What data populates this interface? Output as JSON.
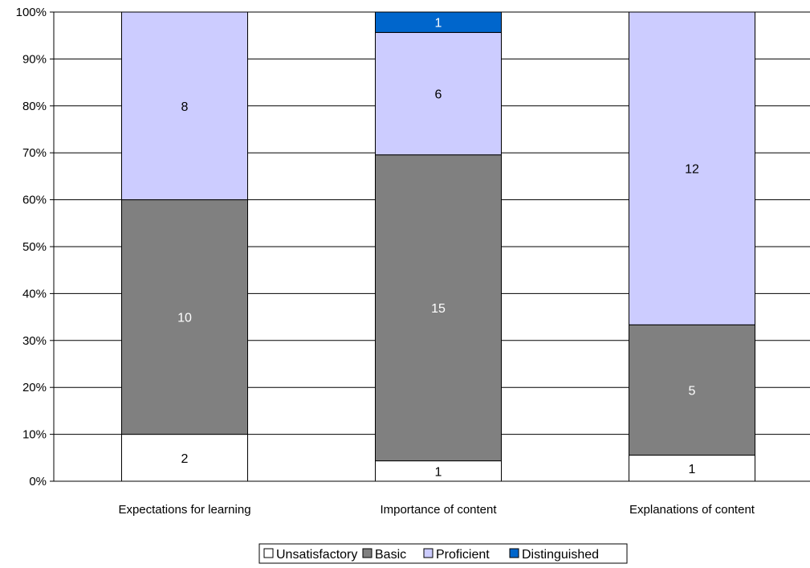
{
  "chart_data": {
    "type": "bar",
    "stacked": true,
    "normalized_100_percent": true,
    "categories": [
      "Expectations for learning",
      "Importance of content",
      "Explanations of content"
    ],
    "series": [
      {
        "name": "Unsatisfactory",
        "values": [
          2,
          1,
          1
        ],
        "color": "#ffffff",
        "label_color": "#000000"
      },
      {
        "name": "Basic",
        "values": [
          10,
          15,
          5
        ],
        "color": "#808080",
        "label_color": "#ffffff"
      },
      {
        "name": "Proficient",
        "values": [
          8,
          6,
          12
        ],
        "color": "#ccccff",
        "label_color": "#000000"
      },
      {
        "name": "Distinguished",
        "values": [
          0,
          1,
          0
        ],
        "color": "#0066cc",
        "label_color": "#ffffff"
      }
    ],
    "y_ticks": [
      "0%",
      "10%",
      "20%",
      "30%",
      "40%",
      "50%",
      "60%",
      "70%",
      "80%",
      "90%",
      "100%"
    ],
    "ylim": [
      0,
      100
    ],
    "grid": true,
    "legend_position": "bottom-center",
    "title": "",
    "xlabel": "",
    "ylabel": ""
  }
}
